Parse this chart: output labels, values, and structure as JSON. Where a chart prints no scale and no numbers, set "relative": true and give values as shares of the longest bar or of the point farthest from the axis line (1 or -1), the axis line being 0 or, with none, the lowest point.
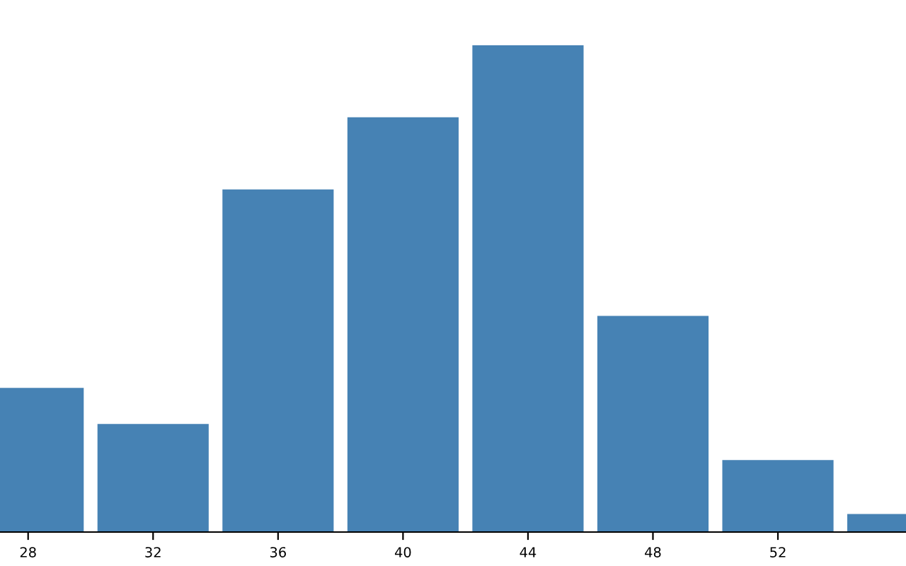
{
  "chart_data": {
    "type": "bar",
    "relative": true,
    "x": [
      28,
      32,
      36,
      40,
      44,
      48,
      52,
      56
    ],
    "values": [
      0.296,
      0.222,
      0.704,
      0.852,
      1,
      0.444,
      0.148,
      0.037
    ],
    "color": "#4682b4",
    "xlim": [
      27.1,
      56.1
    ],
    "xticks": [
      28,
      32,
      36,
      40,
      44,
      48,
      52
    ],
    "grid": false
  }
}
